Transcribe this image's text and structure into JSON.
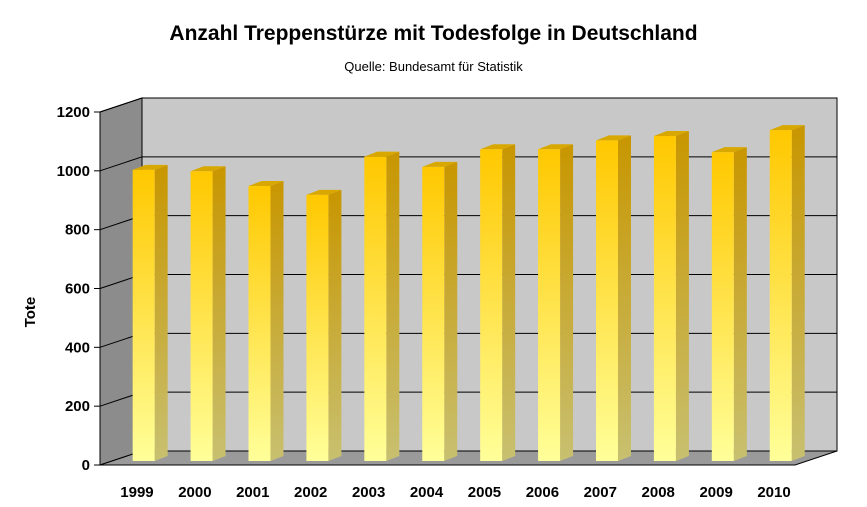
{
  "chart_data": {
    "type": "bar",
    "title": "Anzahl Treppenstürze mit Todesfolge in Deutschland",
    "subtitle": "Quelle: Bundesamt für Statistik",
    "xlabel": "",
    "ylabel": "Tote",
    "categories": [
      "1999",
      "2000",
      "2001",
      "2002",
      "2003",
      "2004",
      "2005",
      "2006",
      "2007",
      "2008",
      "2009",
      "2010"
    ],
    "values": [
      1000,
      995,
      945,
      915,
      1045,
      1010,
      1070,
      1070,
      1100,
      1115,
      1060,
      1135
    ],
    "ylim": [
      0,
      1200
    ],
    "yticks": [
      "0",
      "200",
      "400",
      "600",
      "800",
      "1000",
      "1200"
    ],
    "grid": true,
    "style": "3d",
    "colors": {
      "bar_top": "#ffc800",
      "bar_bottom": "#ffff99",
      "bar_side": "#c89600",
      "bar_cap": "#d8a800",
      "back_wall": "#c8c8c8",
      "side_wall": "#8c8c8c",
      "floor": "#9a9a9a"
    }
  }
}
